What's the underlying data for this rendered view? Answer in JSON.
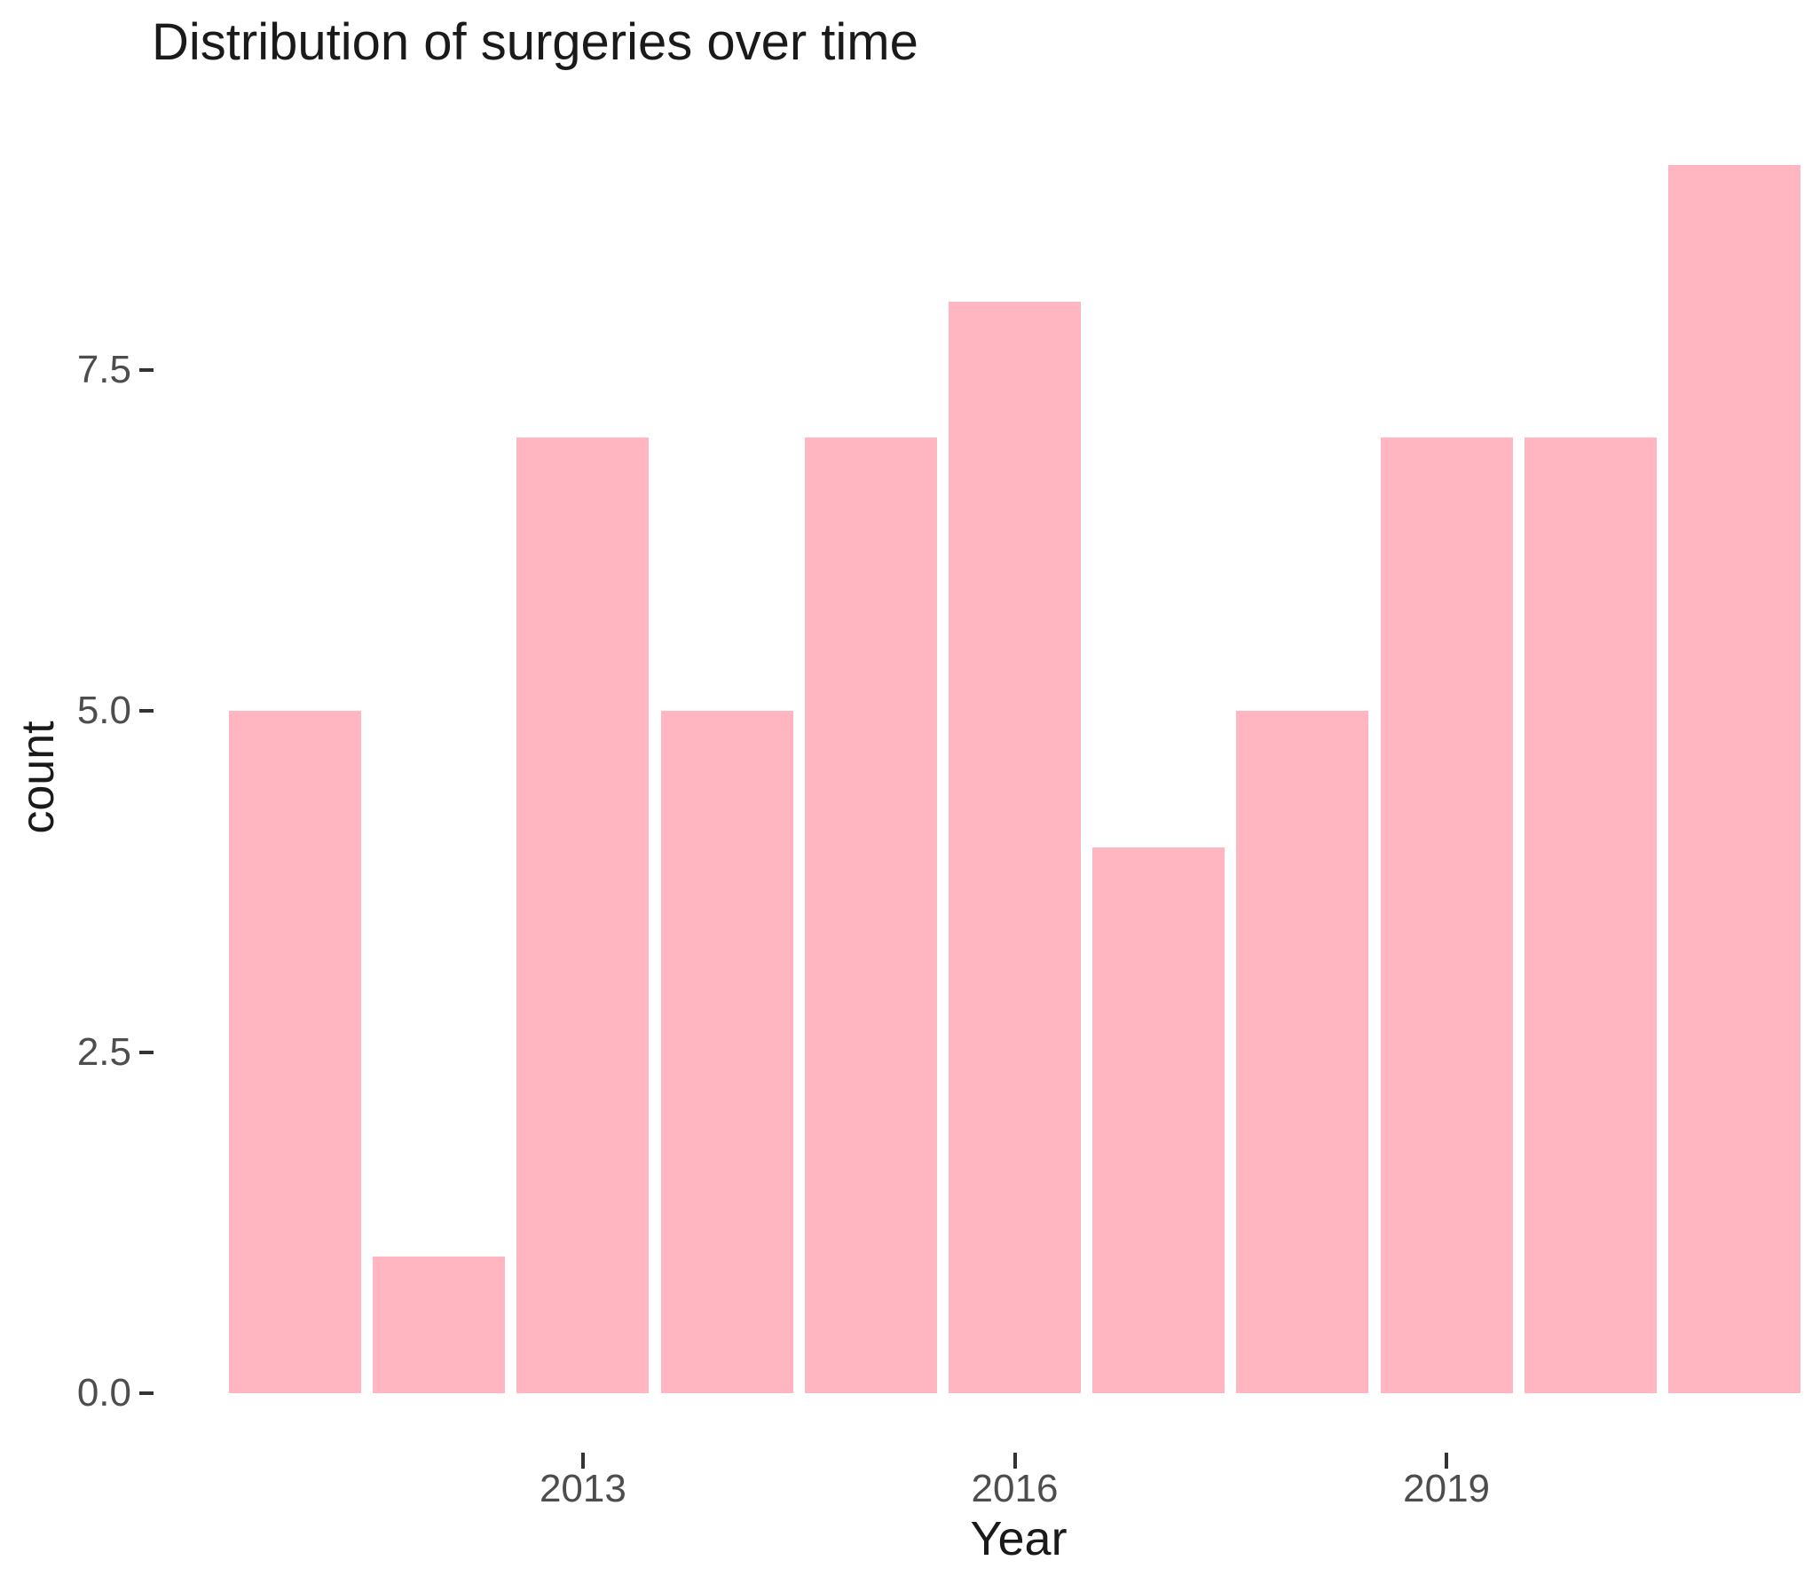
{
  "chart_data": {
    "type": "bar",
    "title": "Distribution of surgeries over time",
    "xlabel": "Year",
    "ylabel": "count",
    "categories": [
      2011,
      2012,
      2013,
      2014,
      2015,
      2016,
      2017,
      2018,
      2019,
      2020,
      2021
    ],
    "values": [
      5,
      1,
      7,
      5,
      7,
      8,
      4,
      5,
      7,
      7,
      9
    ],
    "x_ticks": [
      {
        "label": "2013",
        "year": 2013
      },
      {
        "label": "2016",
        "year": 2016
      },
      {
        "label": "2019",
        "year": 2019
      }
    ],
    "y_ticks": [
      {
        "label": "0.0",
        "value": 0
      },
      {
        "label": "2.5",
        "value": 2.5
      },
      {
        "label": "5.0",
        "value": 5
      },
      {
        "label": "7.5",
        "value": 7.5
      }
    ],
    "ylim": [
      -0.45,
      9.45
    ],
    "grid": false,
    "legend": false,
    "colors": {
      "bar": "#ffb6c1",
      "background": "#ffffff",
      "text": "#1a1a1a",
      "tick_label": "#4d4d4d",
      "tick_mark": "#333333"
    }
  }
}
